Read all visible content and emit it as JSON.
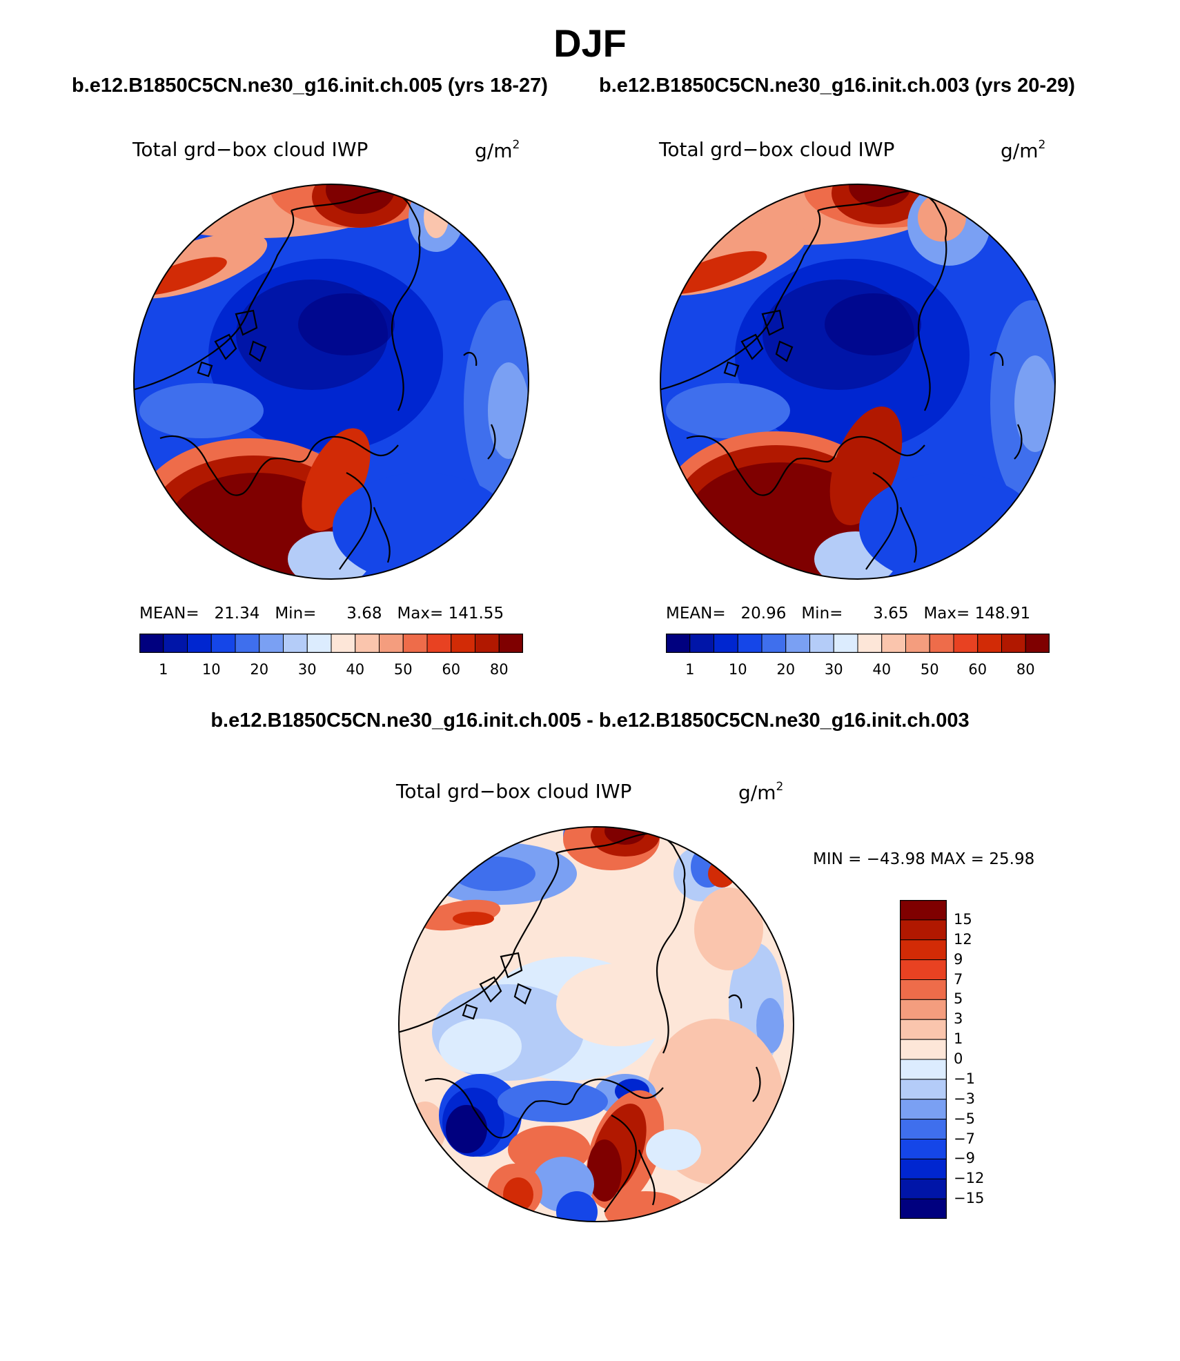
{
  "season": "DJF",
  "case_titles": [
    "b.e12.B1850C5CN.ne30_g16.init.ch.005 (yrs 18-27)",
    "b.e12.B1850C5CN.ne30_g16.init.ch.003 (yrs 20-29)"
  ],
  "difference_title": "b.e12.B1850C5CN.ne30_g16.init.ch.005 - b.e12.B1850C5CN.ne30_g16.init.ch.003",
  "variable": "Total grd−box cloud IWP",
  "units_base": "g/m",
  "units_exp": "2",
  "panels": [
    {
      "stats": {
        "mean_label": "MEAN=",
        "mean": "21.34",
        "min_label": "Min=",
        "min": "3.68",
        "max_label": "Max=",
        "max": "141.55"
      }
    },
    {
      "stats": {
        "mean_label": "MEAN=",
        "mean": "20.96",
        "min_label": "Min=",
        "min": "3.65",
        "max_label": "Max=",
        "max": "148.91"
      }
    }
  ],
  "field_colorbar": {
    "colors": [
      "#00007f",
      "#0015a8",
      "#0026d0",
      "#1546e8",
      "#3f6fed",
      "#7aa0f3",
      "#b4ccf8",
      "#dcecfe",
      "#fde6d8",
      "#fac5ad",
      "#f49d7e",
      "#ee6c4a",
      "#e84222",
      "#d22b06",
      "#b11800",
      "#7f0000"
    ],
    "tick_labels": [
      "1",
      "10",
      "20",
      "30",
      "40",
      "50",
      "60",
      "80"
    ]
  },
  "difference_stats": {
    "text": "MIN = −43.98 MAX =  25.98"
  },
  "difference_colorbar": {
    "colors": [
      "#7f0000",
      "#b11800",
      "#d22b06",
      "#e84222",
      "#ee6c4a",
      "#f49d7e",
      "#fac5ad",
      "#fde6d8",
      "#dcecfe",
      "#b4ccf8",
      "#7aa0f3",
      "#3f6fed",
      "#1546e8",
      "#0026d0",
      "#0015a8",
      "#00007f"
    ],
    "tick_labels": [
      "15",
      "12",
      "9",
      "7",
      "5",
      "3",
      "1",
      "0",
      "−1",
      "−3",
      "−5",
      "−7",
      "−9",
      "−12",
      "−15"
    ]
  }
}
